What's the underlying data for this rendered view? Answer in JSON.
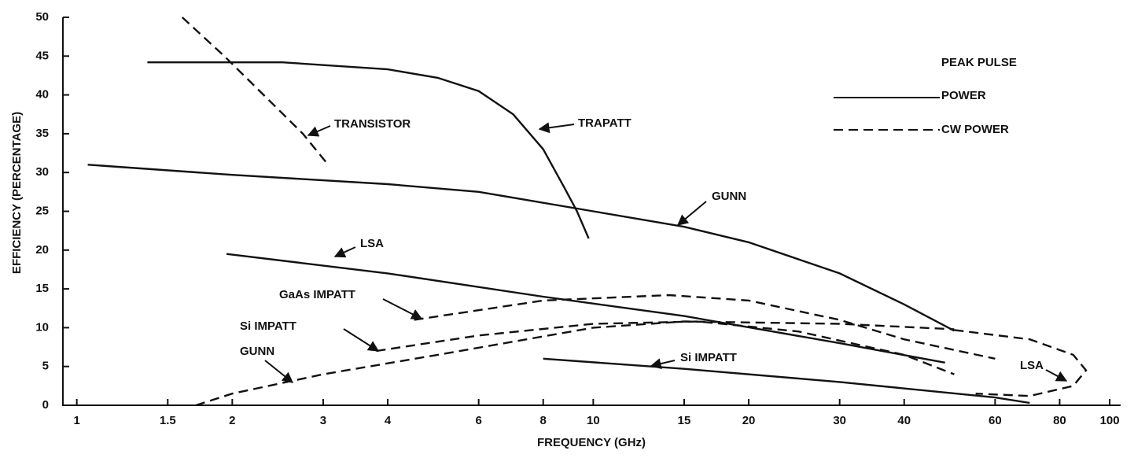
{
  "chart_data": {
    "type": "line",
    "xlabel": "FREQUENCY (GHz)",
    "ylabel": "EFFICIENCY (PERCENTAGE)",
    "xscale": "log",
    "xlim": [
      0.94,
      105
    ],
    "ylim": [
      0,
      50
    ],
    "xticks": [
      1,
      {
        "value": 1.5,
        "label": "1.5"
      },
      2,
      3,
      4,
      6,
      8,
      10,
      15,
      20,
      30,
      40,
      60,
      80,
      100
    ],
    "yticks": [
      0,
      5,
      10,
      15,
      20,
      25,
      30,
      35,
      40,
      45,
      50
    ],
    "legend": [
      {
        "label_lines": [
          "PEAK PULSE",
          "POWER"
        ],
        "dashed": false
      },
      {
        "label_lines": [
          "CW POWER"
        ],
        "dashed": true
      }
    ],
    "series": [
      {
        "name": "TRANSISTOR",
        "dashed": true,
        "color": "#111111",
        "x": [
          1.6,
          1.93,
          2.3,
          2.74,
          3.05
        ],
        "values": [
          50,
          45,
          40,
          35,
          31.2
        ]
      },
      {
        "name": "TRAPATT",
        "dashed": false,
        "color": "#111111",
        "x": [
          1.37,
          2.5,
          4,
          5,
          6,
          7,
          8,
          8.8,
          9.3,
          9.8
        ],
        "values": [
          44.2,
          44.2,
          43.3,
          42.2,
          40.5,
          37.5,
          33,
          28,
          25,
          21.5
        ]
      },
      {
        "name": "GUNN",
        "dashed": false,
        "color": "#111111",
        "x": [
          1.05,
          2,
          4,
          6,
          10,
          15,
          20,
          30,
          40,
          50
        ],
        "values": [
          31,
          29.7,
          28.5,
          27.5,
          25,
          23,
          21,
          17,
          13,
          9.6
        ]
      },
      {
        "name": "LSA",
        "dashed": false,
        "color": "#111111",
        "x": [
          1.95,
          4,
          8,
          15,
          30,
          48
        ],
        "values": [
          19.5,
          17,
          14,
          11.5,
          8,
          5.5
        ]
      },
      {
        "name": "GaAs IMPATT",
        "dashed": true,
        "color": "#111111",
        "x": [
          4.5,
          8,
          14,
          20,
          30,
          40,
          60
        ],
        "values": [
          11,
          13.5,
          14.2,
          13.5,
          11,
          8.5,
          6
        ]
      },
      {
        "name": "Si IMPATT",
        "dashed": true,
        "color": "#111111",
        "x": [
          3.8,
          6,
          10,
          16,
          25,
          40,
          50
        ],
        "values": [
          7,
          9,
          10.5,
          10.8,
          9.5,
          6.5,
          4
        ]
      },
      {
        "name": "GUNN",
        "dashed": true,
        "color": "#111111",
        "x": [
          1.7,
          2,
          3,
          5,
          10,
          15,
          30,
          50
        ],
        "values": [
          0,
          1.5,
          4,
          6.5,
          10,
          10.8,
          10.5,
          9.8
        ]
      },
      {
        "name": "Si IMPATT",
        "dashed": false,
        "color": "#111111",
        "x": [
          8,
          15,
          30,
          60,
          70
        ],
        "values": [
          6,
          4.7,
          3,
          1,
          0.3
        ]
      },
      {
        "name": "LSA",
        "dashed": true,
        "color": "#111111",
        "x": [
          50,
          70,
          85,
          90,
          85,
          70,
          55
        ],
        "values": [
          9.7,
          8.5,
          6.5,
          4.5,
          2.5,
          1.2,
          1.5
        ]
      }
    ]
  }
}
